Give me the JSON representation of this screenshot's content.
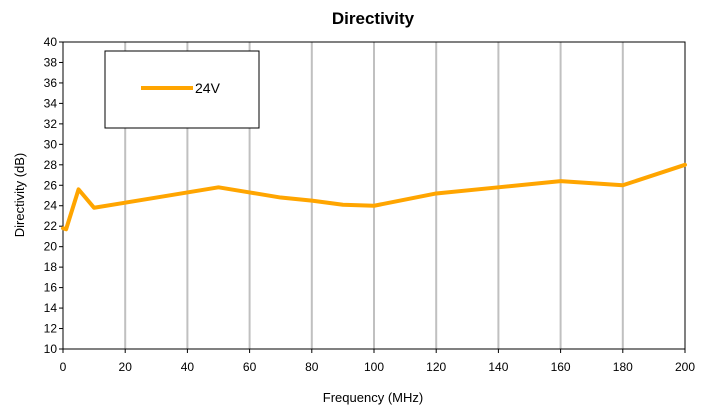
{
  "chart_data": {
    "type": "line",
    "title": "Directivity",
    "xlabel": "Frequency (MHz)",
    "ylabel": "Directivity (dB)",
    "xlim": [
      0,
      200
    ],
    "ylim": [
      10,
      40
    ],
    "x_ticks": [
      0,
      20,
      40,
      60,
      80,
      100,
      120,
      140,
      160,
      180,
      200
    ],
    "y_ticks": [
      10,
      12,
      14,
      16,
      18,
      20,
      22,
      24,
      26,
      28,
      30,
      32,
      34,
      36,
      38,
      40
    ],
    "grid": "vertical",
    "legend_position": "top-left",
    "series": [
      {
        "name": "24V",
        "color": "#FFA500",
        "x": [
          0,
          1,
          5,
          10,
          20,
          30,
          40,
          50,
          60,
          70,
          80,
          90,
          100,
          120,
          140,
          160,
          180,
          200
        ],
        "y": [
          21.8,
          21.7,
          25.6,
          23.8,
          24.3,
          24.8,
          25.3,
          25.8,
          25.3,
          24.8,
          24.5,
          24.1,
          24.0,
          25.2,
          25.8,
          26.4,
          26.0,
          28.0
        ]
      }
    ]
  }
}
